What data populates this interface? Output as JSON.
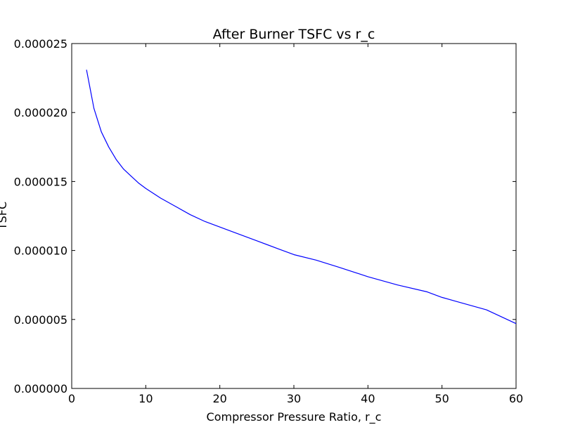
{
  "chart_data": {
    "type": "line",
    "title": "After Burner TSFC vs r_c",
    "xlabel": "Compressor Pressure Ratio, r_c",
    "ylabel": "TSFC",
    "xlim": [
      0,
      60
    ],
    "ylim": [
      0,
      2.5e-05
    ],
    "xticks": [
      0,
      10,
      20,
      30,
      40,
      50,
      60
    ],
    "xtick_labels": [
      "0",
      "10",
      "20",
      "30",
      "40",
      "50",
      "60"
    ],
    "yticks": [
      0,
      5e-06,
      1e-05,
      1.5e-05,
      2e-05,
      2.5e-05
    ],
    "ytick_labels": [
      "0.000000",
      "0.000005",
      "0.000010",
      "0.000015",
      "0.000020",
      "0.000025"
    ],
    "grid": false,
    "series": [
      {
        "color": "#0000ff",
        "x": [
          2,
          3,
          4,
          5,
          6,
          7,
          8,
          9,
          10,
          12,
          14,
          16,
          18,
          20,
          22,
          25,
          28,
          30,
          33,
          36,
          40,
          44,
          48,
          50,
          52,
          56,
          60
        ],
        "y": [
          2.31e-05,
          2.03e-05,
          1.86e-05,
          1.75e-05,
          1.66e-05,
          1.59e-05,
          1.54e-05,
          1.49e-05,
          1.45e-05,
          1.38e-05,
          1.32e-05,
          1.26e-05,
          1.21e-05,
          1.17e-05,
          1.13e-05,
          1.07e-05,
          1.01e-05,
          9.7e-06,
          9.3e-06,
          8.8e-06,
          8.1e-06,
          7.5e-06,
          7e-06,
          6.6e-06,
          6.3e-06,
          5.7e-06,
          4.7e-06
        ]
      }
    ]
  }
}
